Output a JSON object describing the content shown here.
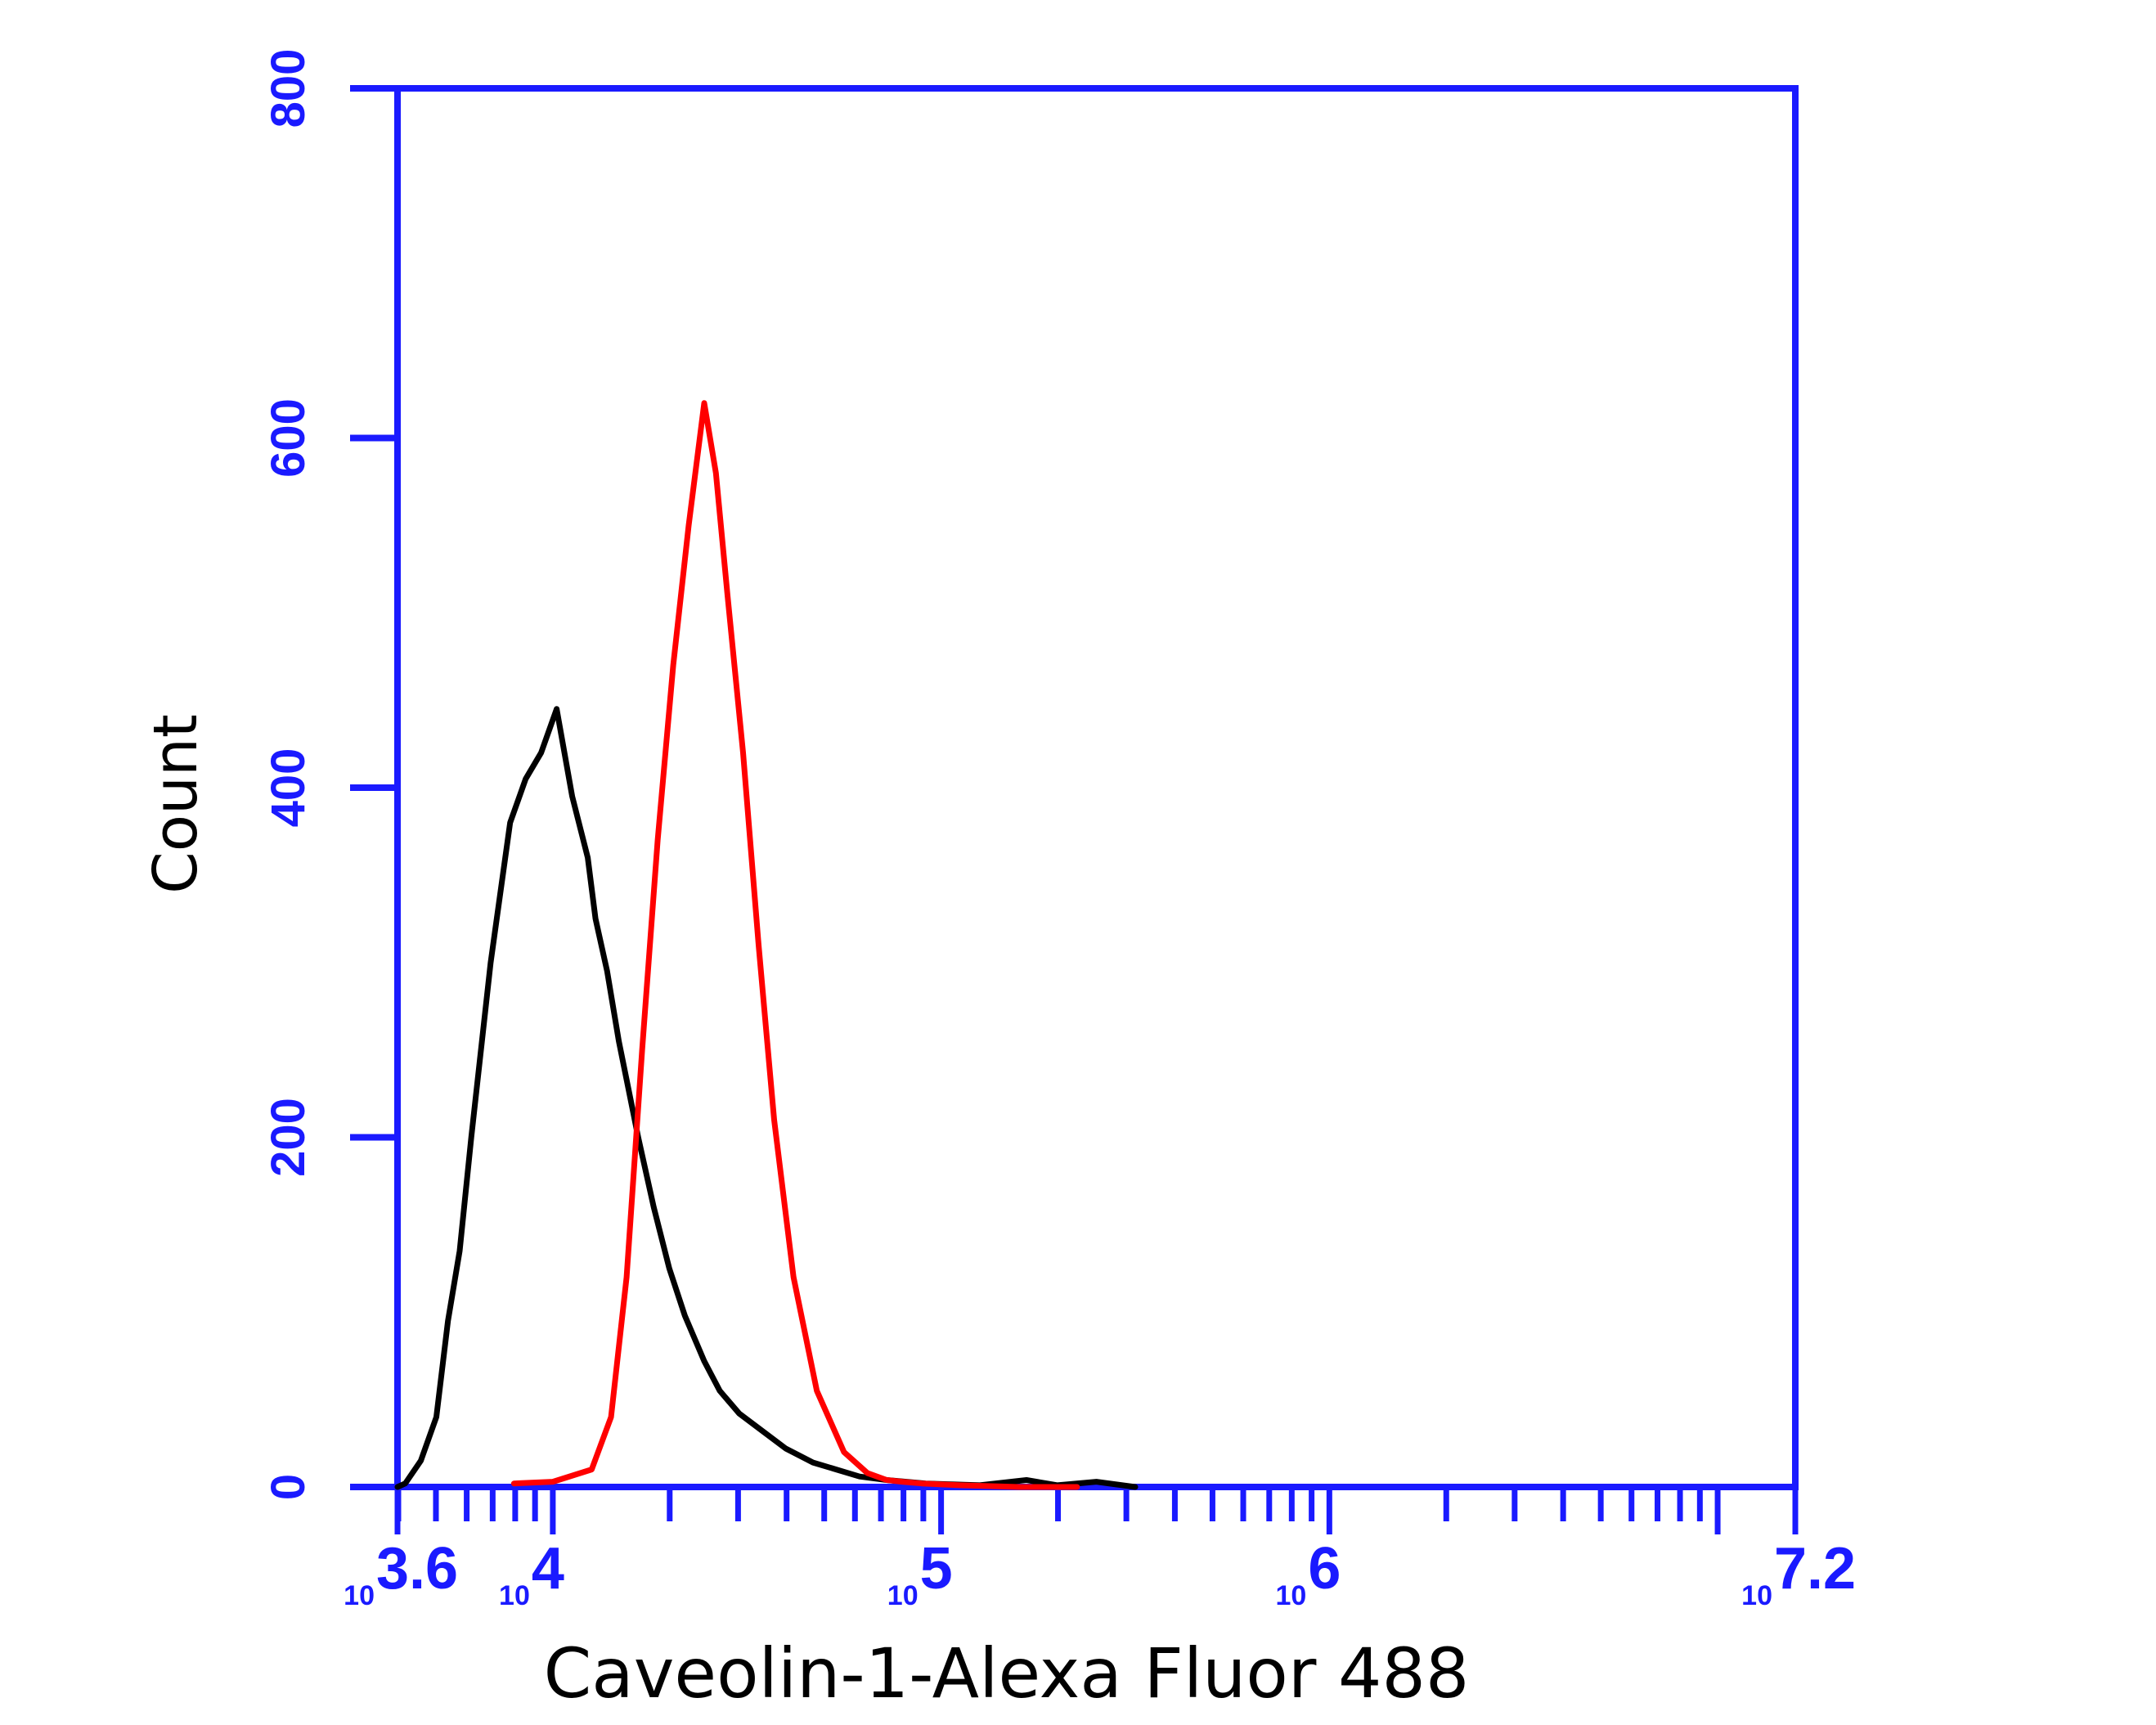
{
  "chart_data": {
    "type": "line",
    "xlabel": "Caveolin-1-Alexa Fluor 488",
    "ylabel": "Count",
    "x_scale": "log10",
    "xlim": [
      3.6,
      7.2
    ],
    "ylim": [
      0,
      800
    ],
    "grid": false,
    "legend": "none",
    "x_ticks": [
      {
        "value": 3.6,
        "base": "10",
        "exp": "3.6"
      },
      {
        "value": 4,
        "base": "10",
        "exp": "4"
      },
      {
        "value": 5,
        "base": "10",
        "exp": "5"
      },
      {
        "value": 6,
        "base": "10",
        "exp": "6"
      },
      {
        "value": 7.2,
        "base": "10",
        "exp": "7.2"
      }
    ],
    "y_ticks": [
      "0",
      "200",
      "400",
      "600",
      "800"
    ],
    "y_tick_values": [
      0,
      200,
      400,
      600,
      800
    ],
    "colors": {
      "axis": "#1a1aff",
      "series_black": "#000000",
      "series_red": "#ff0000"
    },
    "series": [
      {
        "color": "#000000",
        "x": [
          3.6,
          3.62,
          3.66,
          3.7,
          3.73,
          3.76,
          3.79,
          3.84,
          3.89,
          3.93,
          3.97,
          4.01,
          4.05,
          4.09,
          4.11,
          4.14,
          4.17,
          4.22,
          4.26,
          4.3,
          4.34,
          4.39,
          4.43,
          4.48,
          4.54,
          4.6,
          4.67,
          4.73,
          4.79,
          4.86,
          4.96,
          5.1,
          5.22,
          5.3,
          5.4,
          5.5
        ],
        "y": [
          0,
          2,
          15,
          40,
          95,
          135,
          200,
          300,
          380,
          405,
          420,
          445,
          395,
          360,
          325,
          295,
          255,
          200,
          160,
          125,
          98,
          72,
          55,
          42,
          32,
          22,
          14,
          10,
          6,
          4,
          2,
          1,
          4,
          1,
          3,
          0
        ]
      },
      {
        "color": "#ff0000",
        "x": [
          3.9,
          4.0,
          4.1,
          4.15,
          4.19,
          4.23,
          4.27,
          4.31,
          4.35,
          4.39,
          4.42,
          4.45,
          4.49,
          4.53,
          4.57,
          4.62,
          4.68,
          4.75,
          4.81,
          4.86,
          4.9,
          4.95,
          5.05,
          5.2,
          5.35
        ],
        "y": [
          2,
          3,
          10,
          40,
          120,
          250,
          370,
          470,
          550,
          620,
          580,
          510,
          420,
          310,
          210,
          120,
          55,
          20,
          8,
          4,
          3,
          2,
          1,
          0,
          0
        ]
      }
    ]
  }
}
